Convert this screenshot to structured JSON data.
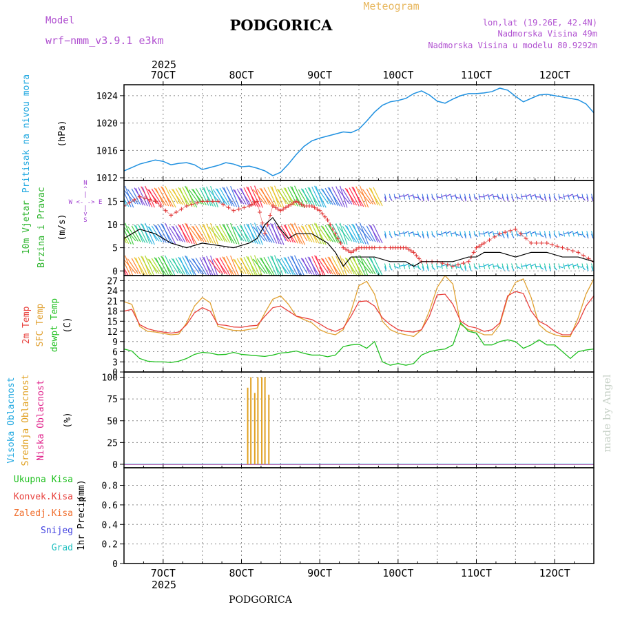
{
  "header": {
    "model_label": "Model",
    "model_name": "wrf−nmm_v3.9.1  e3km",
    "station": "PODGORICA",
    "meteogram": "Meteogram",
    "lonlat": "lon,lat (19.26E, 42.4N)",
    "elevation": "Nadmorska Visina 49m",
    "model_elevation": "Nadmorska Visina u modelu 80.9292m",
    "footer_station": "PODGORICA",
    "credit": "made by Angel"
  },
  "time_axis": {
    "year": "2025",
    "day_labels": [
      "7OCT",
      "8OCT",
      "9OCT",
      "10OCT",
      "11OCT",
      "12OCT"
    ],
    "day_positions": [
      7,
      8,
      9,
      10,
      11,
      12
    ],
    "range": [
      6.5,
      12.5
    ]
  },
  "colors": {
    "pressure": "#1e90e0",
    "wind_label": "#2db52d",
    "temp2m": "#e8403c",
    "sfc": "#e0a030",
    "dewpt": "#20c020",
    "high_cloud": "#20a8e0",
    "mid_cloud": "#e0a020",
    "low_cloud": "#e0208a",
    "header_purple": "#b050d0",
    "header_orange": "#e8b860",
    "credit": "#c8d2c8"
  },
  "chart_data": [
    {
      "type": "line",
      "panel": "pressure",
      "ylabel": "Pritisak na nivou mora",
      "units": "(hPa)",
      "ylim": [
        1011.6,
        1025.6
      ],
      "yticks": [
        1012,
        1016,
        1020,
        1024
      ],
      "x": [
        6.5,
        6.6,
        6.7,
        6.8,
        6.9,
        7.0,
        7.1,
        7.2,
        7.3,
        7.4,
        7.5,
        7.6,
        7.7,
        7.8,
        7.9,
        8.0,
        8.1,
        8.2,
        8.3,
        8.4,
        8.5,
        8.6,
        8.7,
        8.8,
        8.9,
        9.0,
        9.1,
        9.2,
        9.3,
        9.4,
        9.5,
        9.6,
        9.7,
        9.8,
        9.9,
        10.0,
        10.1,
        10.2,
        10.3,
        10.4,
        10.5,
        10.6,
        10.7,
        10.8,
        10.9,
        11.0,
        11.1,
        11.2,
        11.3,
        11.4,
        11.5,
        11.6,
        11.7,
        11.8,
        11.9,
        12.0,
        12.1,
        12.2,
        12.3,
        12.4,
        12.5
      ],
      "series": [
        {
          "name": "pressure",
          "values": [
            1013.0,
            1013.5,
            1014.0,
            1014.3,
            1014.6,
            1014.4,
            1013.9,
            1014.1,
            1014.2,
            1013.9,
            1013.2,
            1013.5,
            1013.8,
            1014.2,
            1014.0,
            1013.6,
            1013.7,
            1013.4,
            1013.0,
            1012.3,
            1012.8,
            1014.0,
            1015.4,
            1016.6,
            1017.4,
            1017.8,
            1018.1,
            1018.4,
            1018.7,
            1018.6,
            1019.1,
            1020.3,
            1021.6,
            1022.6,
            1023.1,
            1023.3,
            1023.6,
            1024.3,
            1024.7,
            1024.1,
            1023.2,
            1022.9,
            1023.5,
            1024.0,
            1024.3,
            1024.3,
            1024.4,
            1024.6,
            1025.1,
            1024.8,
            1023.9,
            1023.1,
            1023.6,
            1024.1,
            1024.2,
            1024.0,
            1023.8,
            1023.6,
            1023.4,
            1022.8,
            1021.5
          ]
        }
      ]
    },
    {
      "type": "line",
      "panel": "wind",
      "ylabel": [
        "10m Vjetar",
        "Brzina i Pravac"
      ],
      "units": "(m/s)",
      "direction_legend": [
        "N",
        "^",
        "|",
        "W <- -> E",
        "|",
        "v",
        "S"
      ],
      "ylim": [
        -1,
        19.5
      ],
      "yticks": [
        0,
        5,
        10,
        15
      ],
      "x": [
        6.5,
        6.7,
        6.9,
        7.1,
        7.3,
        7.5,
        7.7,
        7.9,
        8.1,
        8.2,
        8.3,
        8.4,
        8.5,
        8.6,
        8.7,
        8.8,
        8.9,
        9.0,
        9.1,
        9.2,
        9.3,
        9.4,
        9.5,
        9.6,
        9.7,
        9.9,
        10.0,
        10.1,
        10.2,
        10.3,
        10.5,
        10.7,
        10.9,
        11.0,
        11.1,
        11.3,
        11.5,
        11.7,
        11.9,
        12.1,
        12.3,
        12.5
      ],
      "series": [
        {
          "name": "wind speed",
          "values": [
            7,
            9,
            8,
            6,
            5,
            6,
            5.5,
            5,
            6,
            7,
            10,
            11.5,
            9,
            7,
            8,
            8,
            8,
            7,
            6,
            4,
            1,
            3,
            3,
            3,
            3,
            2,
            2,
            2,
            1,
            2,
            2,
            2,
            3,
            3,
            4,
            4,
            3,
            4,
            4,
            3,
            3,
            2
          ]
        },
        {
          "name": "gust",
          "values": [
            14,
            16,
            15,
            12,
            14,
            15,
            15,
            13,
            14,
            15,
            8,
            14,
            13,
            14,
            15,
            14,
            14,
            13,
            11,
            8,
            5,
            4,
            5,
            5,
            5,
            5,
            5,
            5,
            4,
            2,
            2,
            1,
            2,
            5,
            6,
            8,
            9,
            6,
            6,
            5,
            4,
            2
          ]
        }
      ],
      "vector_band_centers": [
        1,
        8,
        16
      ],
      "barb_days_span": [
        6.5,
        9.8
      ]
    },
    {
      "type": "line",
      "panel": "temperature",
      "ylabel": [
        "2m Temp",
        "SFC Temp",
        "dewpt Temp"
      ],
      "units": "(C)",
      "ylim": [
        0,
        28.5
      ],
      "yticks": [
        0,
        3,
        6,
        9,
        12,
        15,
        18,
        21,
        24,
        27
      ],
      "x": [
        6.5,
        6.6,
        6.7,
        6.8,
        6.9,
        7.0,
        7.1,
        7.2,
        7.3,
        7.4,
        7.5,
        7.6,
        7.7,
        7.8,
        7.9,
        8.0,
        8.1,
        8.2,
        8.3,
        8.4,
        8.5,
        8.6,
        8.7,
        8.8,
        8.9,
        9.0,
        9.1,
        9.2,
        9.3,
        9.4,
        9.5,
        9.6,
        9.7,
        9.8,
        9.9,
        10.0,
        10.1,
        10.2,
        10.3,
        10.4,
        10.5,
        10.6,
        10.7,
        10.8,
        10.9,
        11.0,
        11.1,
        11.2,
        11.3,
        11.4,
        11.5,
        11.6,
        11.7,
        11.8,
        11.9,
        12.0,
        12.1,
        12.2,
        12.3,
        12.4,
        12.5
      ],
      "series": [
        {
          "name": "2m Temp",
          "values": [
            18,
            18.5,
            14,
            12.8,
            12.2,
            11.8,
            11.5,
            11.8,
            14,
            17.5,
            19,
            18,
            14,
            13.8,
            13.3,
            13.2,
            13.6,
            13.8,
            16.5,
            19,
            19.5,
            18,
            16.5,
            16,
            15.5,
            14.2,
            12.8,
            12,
            13,
            16.5,
            20.8,
            21,
            19.5,
            16,
            14,
            12.5,
            12,
            11.8,
            12.5,
            16.5,
            22.8,
            23,
            20,
            15,
            13.5,
            13,
            12,
            12.5,
            14.5,
            22.5,
            23.8,
            23.2,
            18,
            15,
            13.8,
            12,
            11,
            11,
            14.5,
            19.5,
            22.5
          ]
        },
        {
          "name": "SFC Temp",
          "values": [
            20.8,
            20,
            13.5,
            12,
            11.8,
            11.4,
            11,
            11.2,
            14.5,
            19.5,
            22,
            20.5,
            13.5,
            12.8,
            12.3,
            12.2,
            12.6,
            13,
            17.5,
            21.5,
            22.5,
            20,
            16.5,
            15.5,
            14.5,
            12.5,
            11.5,
            11,
            12.5,
            18,
            25.5,
            26.8,
            23,
            15,
            12.5,
            11.5,
            11,
            10.5,
            12.5,
            18,
            25,
            28.5,
            26,
            14,
            12.5,
            12,
            11,
            11,
            14,
            22,
            26.5,
            27.5,
            22,
            14,
            12,
            11,
            10.5,
            10.5,
            16,
            23,
            27.5
          ]
        },
        {
          "name": "dewpt Temp",
          "values": [
            6.8,
            6.2,
            4,
            3.2,
            3,
            3,
            2.8,
            3.2,
            4,
            5.2,
            5.8,
            5.6,
            5.1,
            5.2,
            5.8,
            5.2,
            5,
            4.8,
            4.6,
            5,
            5.6,
            5.8,
            6.2,
            5.5,
            5,
            5,
            4.5,
            5,
            7.5,
            8,
            8.2,
            7,
            9,
            3,
            2,
            2.5,
            2,
            2.5,
            5,
            6,
            6.5,
            6.8,
            8,
            14.5,
            12,
            11.5,
            8,
            8,
            9,
            9.5,
            9,
            7,
            8,
            9.5,
            8,
            8,
            6,
            4,
            6,
            6.5,
            6.8
          ]
        }
      ]
    },
    {
      "type": "bar",
      "panel": "cloud",
      "ylabel": [
        "Visoka Oblacnost",
        "Srednja Oblacnost",
        "Niska Oblacnost"
      ],
      "units": "(%)",
      "ylim": [
        -4,
        106
      ],
      "yticks": [
        0,
        25,
        50,
        75,
        100
      ],
      "x": [
        8.08,
        8.12,
        8.17,
        8.21,
        8.26,
        8.3,
        8.35
      ],
      "series": [
        {
          "name": "Srednja Oblacnost",
          "values": [
            88,
            100,
            82,
            100,
            100,
            100,
            80
          ]
        }
      ],
      "baseline_series": [
        "Visoka Oblacnost",
        "Niska Oblacnost"
      ]
    },
    {
      "type": "bar",
      "panel": "precipitation",
      "ylabel": "1hr Precip",
      "units": "(mm)",
      "legend": [
        "Ukupna Kisa",
        "Konvek.Kisa",
        "Zaledj.Kisa",
        "Snijeg",
        "Grad"
      ],
      "legend_colors": [
        "#20c020",
        "#e8403c",
        "#f07030",
        "#4040e0",
        "#20c0c0"
      ],
      "ylim": [
        0,
        0.98
      ],
      "yticks": [
        0,
        0.2,
        0.4,
        0.6,
        0.8
      ],
      "ytick_labels": [
        "0",
        "0.2",
        "0.4",
        "0.6",
        "0.8"
      ],
      "values": []
    }
  ]
}
